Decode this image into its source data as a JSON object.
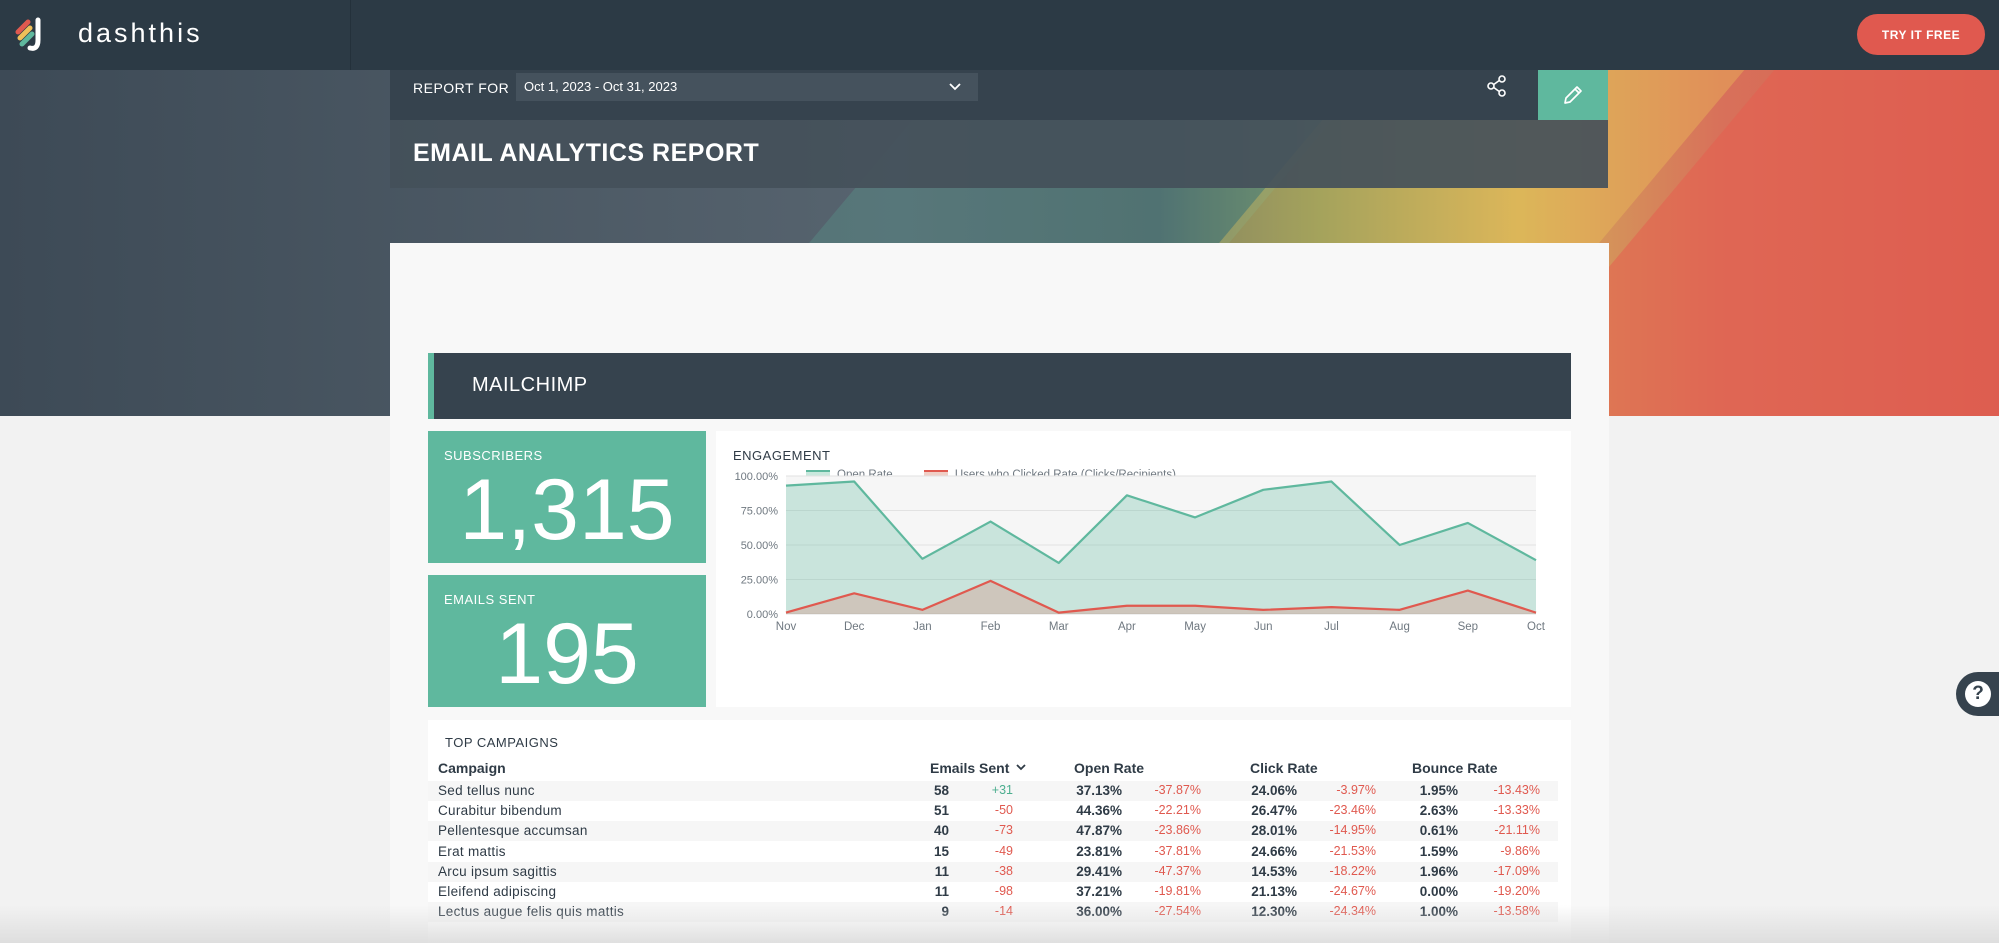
{
  "brand": {
    "name": "dashthis",
    "cta": "TRY IT FREE"
  },
  "report": {
    "for_label": "REPORT FOR",
    "date_range": "Oct 1, 2023 - Oct 31, 2023",
    "title": "EMAIL ANALYTICS REPORT",
    "icons": {
      "share": "share-icon",
      "edit": "pencil-icon",
      "dropdown": "chevron-down-icon"
    }
  },
  "section": {
    "title": "MAILCHIMP"
  },
  "kpis": {
    "subscribers": {
      "label": "SUBSCRIBERS",
      "value": "1,315"
    },
    "emails_sent": {
      "label": "EMAILS SENT",
      "value": "195"
    }
  },
  "colors": {
    "accent": "#5fb89e",
    "danger": "#e0594f",
    "dark": "#36434e"
  },
  "chart_data": {
    "type": "area",
    "title": "ENGAGEMENT",
    "categories": [
      "Nov",
      "Dec",
      "Jan",
      "Feb",
      "Mar",
      "Apr",
      "May",
      "Jun",
      "Jul",
      "Aug",
      "Sep",
      "Oct"
    ],
    "yticks": [
      "100.00%",
      "75.00%",
      "50.00%",
      "25.00%",
      "0.00%"
    ],
    "ylim": [
      0,
      100
    ],
    "series": [
      {
        "name": "Open Rate",
        "color": "#5fb89e",
        "values": [
          93,
          96,
          40,
          67,
          37,
          86,
          70,
          90,
          96,
          50,
          66,
          39
        ]
      },
      {
        "name": "Users who Clicked Rate (Clicks/Recipients)",
        "color": "#e0594f",
        "values": [
          1,
          15,
          3,
          24,
          1,
          6,
          6,
          3,
          5,
          3,
          17,
          1
        ]
      }
    ],
    "legend": "top-left",
    "grid": true
  },
  "table": {
    "title": "TOP CAMPAIGNS",
    "headers": {
      "campaign": "Campaign",
      "emails_sent": "Emails Sent",
      "open_rate": "Open Rate",
      "click_rate": "Click Rate",
      "bounce_rate": "Bounce Rate",
      "sort_icon": "chevron-down-icon"
    },
    "rows": [
      {
        "name": "Sed tellus nunc",
        "sent": "58",
        "sent_d": "+31",
        "open": "37.13%",
        "open_d": "-37.87%",
        "click": "24.06%",
        "click_d": "-3.97%",
        "bounce": "1.95%",
        "bounce_d": "-13.43%"
      },
      {
        "name": "Curabitur bibendum",
        "sent": "51",
        "sent_d": "-50",
        "open": "44.36%",
        "open_d": "-22.21%",
        "click": "26.47%",
        "click_d": "-23.46%",
        "bounce": "2.63%",
        "bounce_d": "-13.33%"
      },
      {
        "name": "Pellentesque accumsan",
        "sent": "40",
        "sent_d": "-73",
        "open": "47.87%",
        "open_d": "-23.86%",
        "click": "28.01%",
        "click_d": "-14.95%",
        "bounce": "0.61%",
        "bounce_d": "-21.11%"
      },
      {
        "name": "Erat mattis",
        "sent": "15",
        "sent_d": "-49",
        "open": "23.81%",
        "open_d": "-37.81%",
        "click": "24.66%",
        "click_d": "-21.53%",
        "bounce": "1.59%",
        "bounce_d": "-9.86%"
      },
      {
        "name": "Arcu ipsum sagittis",
        "sent": "11",
        "sent_d": "-38",
        "open": "29.41%",
        "open_d": "-47.37%",
        "click": "14.53%",
        "click_d": "-18.22%",
        "bounce": "1.96%",
        "bounce_d": "-17.09%"
      },
      {
        "name": "Eleifend adipiscing",
        "sent": "11",
        "sent_d": "-98",
        "open": "37.21%",
        "open_d": "-19.81%",
        "click": "21.13%",
        "click_d": "-24.67%",
        "bounce": "0.00%",
        "bounce_d": "-19.20%"
      },
      {
        "name": "Lectus augue felis quis mattis",
        "sent": "9",
        "sent_d": "-14",
        "open": "36.00%",
        "open_d": "-27.54%",
        "click": "12.30%",
        "click_d": "-24.34%",
        "bounce": "1.00%",
        "bounce_d": "-13.58%"
      }
    ]
  },
  "help": {
    "label": "?"
  }
}
